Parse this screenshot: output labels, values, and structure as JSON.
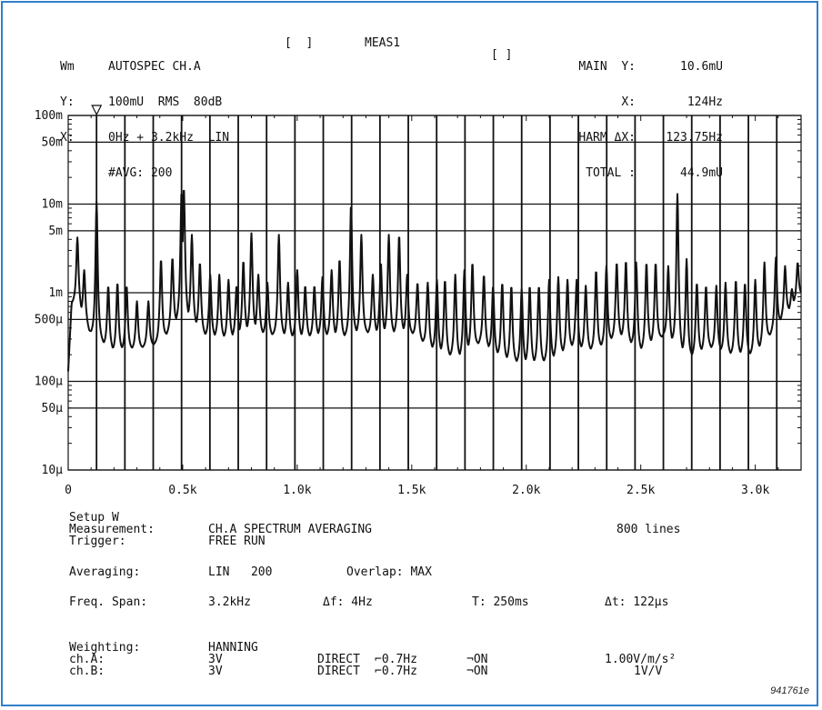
{
  "header": {
    "left": {
      "col0": [
        "Wm",
        "Y:",
        "X:",
        ""
      ],
      "col1": [
        "AUTOSPEC CH.A",
        "100mU  RMS  80dB",
        "0Hz + 3.2kHz  LIN",
        "#AVG: 200"
      ],
      "bracket1": "[  ]",
      "meas": "MEAS1",
      "bracket2": "[ ]"
    },
    "right": {
      "labels": [
        "MAIN  Y:",
        "X:",
        "HARM ΔX:",
        "TOTAL :"
      ],
      "values": [
        "10.6mU",
        "124Hz",
        "123.75Hz",
        "44.9mU"
      ]
    }
  },
  "chart_data": {
    "type": "line",
    "title": "",
    "xlabel": "",
    "ylabel": "",
    "xlim": [
      0,
      3200
    ],
    "ylim": [
      1e-05,
      0.1
    ],
    "yscale": "log",
    "grid_y_values": [
      0.1,
      0.05,
      0.01,
      0.005,
      0.001,
      0.0005,
      0.0001,
      5e-05,
      1e-05
    ],
    "y_tick_labels": [
      {
        "value": 0.1,
        "label": "100m"
      },
      {
        "value": 0.05,
        "label": "50m"
      },
      {
        "value": 0.01,
        "label": "10m"
      },
      {
        "value": 0.005,
        "label": "5m"
      },
      {
        "value": 0.001,
        "label": "1m"
      },
      {
        "value": 0.0005,
        "label": "500µ"
      },
      {
        "value": 0.0001,
        "label": "100µ"
      },
      {
        "value": 5e-05,
        "label": "50µ"
      },
      {
        "value": 1e-05,
        "label": "10µ"
      }
    ],
    "x_tick_labels": [
      {
        "value": 0,
        "label": "0"
      },
      {
        "value": 500,
        "label": "0.5k"
      },
      {
        "value": 1000,
        "label": "1.0k"
      },
      {
        "value": 1500,
        "label": "1.5k"
      },
      {
        "value": 2000,
        "label": "2.0k"
      },
      {
        "value": 2500,
        "label": "2.5k"
      },
      {
        "value": 3000,
        "label": "3.0k"
      }
    ],
    "marker_x": 124,
    "harmonic_spacing_hz": 123.75,
    "harmonic_count": 25,
    "baseline": [
      [
        0,
        0.00012
      ],
      [
        15,
        0.0007
      ],
      [
        40,
        0.0007
      ],
      [
        100,
        0.0003
      ],
      [
        200,
        0.0002
      ],
      [
        300,
        0.00022
      ],
      [
        400,
        0.00025
      ],
      [
        500,
        0.0005
      ],
      [
        600,
        0.0003
      ],
      [
        700,
        0.00028
      ],
      [
        800,
        0.00033
      ],
      [
        900,
        0.0003
      ],
      [
        1000,
        0.00028
      ],
      [
        1100,
        0.0003
      ],
      [
        1200,
        0.00028
      ],
      [
        1300,
        0.00032
      ],
      [
        1400,
        0.0003
      ],
      [
        1500,
        0.00032
      ],
      [
        1600,
        0.0002
      ],
      [
        1700,
        0.00016
      ],
      [
        1800,
        0.00025
      ],
      [
        1900,
        0.00016
      ],
      [
        2000,
        0.00014
      ],
      [
        2100,
        0.00015
      ],
      [
        2200,
        0.00022
      ],
      [
        2300,
        0.0002
      ],
      [
        2400,
        0.0003
      ],
      [
        2500,
        0.0002
      ],
      [
        2600,
        0.0003
      ],
      [
        2700,
        0.00016
      ],
      [
        2800,
        0.00022
      ],
      [
        2900,
        0.00018
      ],
      [
        3000,
        0.00018
      ],
      [
        3100,
        0.0004
      ],
      [
        3200,
        0.0009
      ]
    ],
    "peaks": [
      [
        40,
        0.0042
      ],
      [
        70,
        0.0018
      ],
      [
        124,
        0.0106
      ],
      [
        175,
        0.0012
      ],
      [
        215,
        0.0013
      ],
      [
        255,
        0.0012
      ],
      [
        300,
        0.0008
      ],
      [
        350,
        0.0008
      ],
      [
        405,
        0.0024
      ],
      [
        455,
        0.0025
      ],
      [
        495,
        0.014
      ],
      [
        505,
        0.0155
      ],
      [
        540,
        0.0045
      ],
      [
        575,
        0.0022
      ],
      [
        620,
        0.0016
      ],
      [
        660,
        0.0016
      ],
      [
        700,
        0.0014
      ],
      [
        735,
        0.0012
      ],
      [
        765,
        0.0023
      ],
      [
        800,
        0.0047
      ],
      [
        830,
        0.0016
      ],
      [
        870,
        0.0013
      ],
      [
        920,
        0.0045
      ],
      [
        960,
        0.0013
      ],
      [
        1000,
        0.0018
      ],
      [
        1035,
        0.0012
      ],
      [
        1075,
        0.0012
      ],
      [
        1110,
        0.0015
      ],
      [
        1150,
        0.0018
      ],
      [
        1185,
        0.0024
      ],
      [
        1235,
        0.01
      ],
      [
        1280,
        0.0045
      ],
      [
        1330,
        0.0016
      ],
      [
        1365,
        0.0022
      ],
      [
        1400,
        0.0045
      ],
      [
        1445,
        0.0045
      ],
      [
        1480,
        0.0016
      ],
      [
        1525,
        0.0013
      ],
      [
        1570,
        0.0013
      ],
      [
        1610,
        0.0014
      ],
      [
        1645,
        0.0014
      ],
      [
        1690,
        0.0016
      ],
      [
        1730,
        0.0018
      ],
      [
        1765,
        0.0022
      ],
      [
        1815,
        0.0016
      ],
      [
        1855,
        0.0012
      ],
      [
        1895,
        0.0013
      ],
      [
        1935,
        0.0012
      ],
      [
        1980,
        0.0011
      ],
      [
        2015,
        0.0012
      ],
      [
        2055,
        0.0012
      ],
      [
        2100,
        0.0014
      ],
      [
        2140,
        0.0015
      ],
      [
        2180,
        0.0014
      ],
      [
        2220,
        0.0014
      ],
      [
        2260,
        0.0012
      ],
      [
        2305,
        0.0018
      ],
      [
        2350,
        0.002
      ],
      [
        2395,
        0.0022
      ],
      [
        2435,
        0.0023
      ],
      [
        2480,
        0.0022
      ],
      [
        2525,
        0.0022
      ],
      [
        2565,
        0.0022
      ],
      [
        2620,
        0.002
      ],
      [
        2660,
        0.013
      ],
      [
        2700,
        0.0024
      ],
      [
        2745,
        0.0013
      ],
      [
        2785,
        0.0012
      ],
      [
        2830,
        0.0012
      ],
      [
        2870,
        0.0013
      ],
      [
        2915,
        0.0014
      ],
      [
        2955,
        0.0013
      ],
      [
        3000,
        0.0014
      ],
      [
        3040,
        0.0022
      ],
      [
        3090,
        0.0025
      ],
      [
        3130,
        0.002
      ],
      [
        3160,
        0.0011
      ],
      [
        3185,
        0.0022
      ]
    ]
  },
  "setup": {
    "title": "Setup W",
    "measurement_label": "Measurement:",
    "measurement_value": "CH.A SPECTRUM AVERAGING",
    "lines": "800 lines",
    "trigger_label": "Trigger:",
    "trigger_value": "FREE RUN",
    "averaging_label": "Averaging:",
    "averaging_value": "LIN   200",
    "overlap": "Overlap: MAX",
    "span_label": "Freq. Span:",
    "span_value": "3.2kHz",
    "df": "Δf: 4Hz",
    "T": "T: 250ms",
    "dt": "Δt: 122µs",
    "weighting_label": "Weighting:",
    "weighting_value": "HANNING",
    "cha_label": "ch.A:",
    "cha_range": "3V",
    "cha_mode": "DIRECT",
    "cha_filter": "⌐0.7Hz",
    "cha_on": "¬ON",
    "cha_sens": "1.00V/m/s²",
    "chb_label": "ch.B:",
    "chb_range": "3V",
    "chb_mode": "DIRECT",
    "chb_filter": "⌐0.7Hz",
    "chb_on": "¬ON",
    "chb_sens": "1V/V"
  },
  "figure_number": "941761e"
}
